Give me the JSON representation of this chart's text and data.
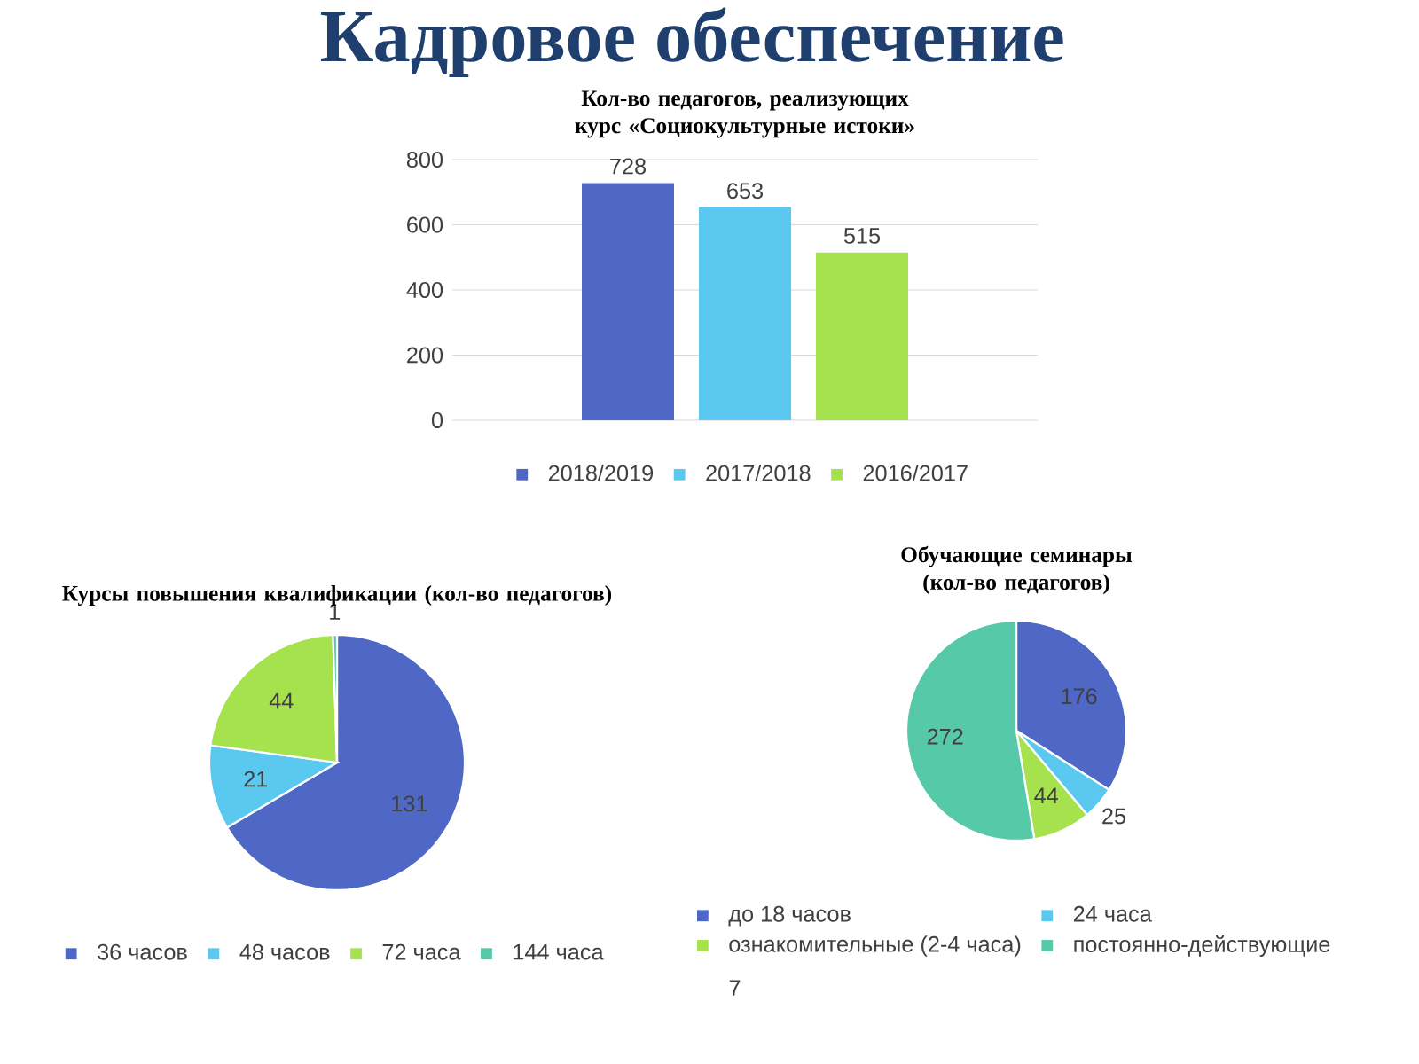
{
  "chart_data": [
    {
      "type": "bar",
      "title": "Кадровое обеспечение",
      "subtitle": "Кол-во педагогов, реализующих курс «Социокультурные истоки»",
      "categories": [
        null
      ],
      "series": [
        {
          "name": "2018/2019",
          "color": "#4f67c5",
          "values": [
            728
          ]
        },
        {
          "name": "2017/2018",
          "color": "#5bc8ef",
          "values": [
            653
          ]
        },
        {
          "name": "2016/2017",
          "color": "#a6e24e",
          "values": [
            515
          ]
        }
      ],
      "ylim": [
        0,
        800
      ],
      "yticks": [
        0,
        200,
        400,
        600,
        800
      ],
      "grid": "y",
      "data_labels": true,
      "legend": "bottom"
    },
    {
      "type": "pie",
      "title": "Курсы повышения квалификации (кол-во педагогов)",
      "categories": [
        "36 часов",
        "48 часов",
        "72 часа",
        "144 часа"
      ],
      "values": [
        131,
        21,
        44,
        1
      ],
      "colors": [
        "#4f67c5",
        "#5bc8ef",
        "#a6e24e",
        "#56c9a9"
      ],
      "data_labels": true,
      "legend": "bottom"
    },
    {
      "type": "pie",
      "title": "Обучающие семинары (кол-во педагогов)",
      "categories": [
        "до 18 часов",
        "24 часа",
        "ознакомительные (2-4 часа)",
        "постоянно-действующие"
      ],
      "values": [
        176,
        25,
        44,
        272
      ],
      "colors": [
        "#4f67c5",
        "#5bc8ef",
        "#a6e24e",
        "#56c9a9"
      ],
      "data_labels": true,
      "legend": "bottom",
      "annotations": [
        "7"
      ]
    }
  ]
}
